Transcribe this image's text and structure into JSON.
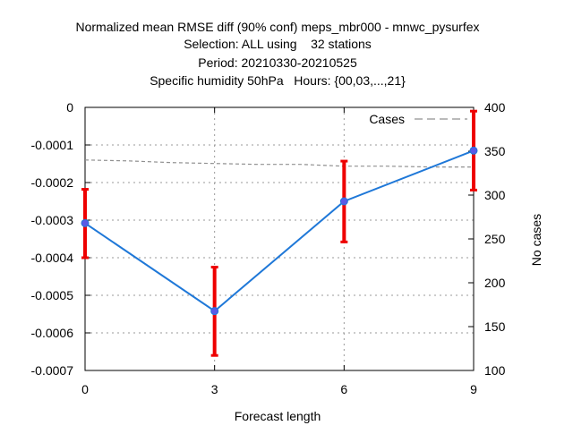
{
  "chart_data": {
    "type": "line",
    "title_lines": [
      "Normalized mean RMSE diff (90% conf) meps_mbr000 - mnwc_pysurfex",
      "Selection: ALL using    32 stations",
      "Period: 20210330-20210525",
      "Specific humidity 50hPa   Hours: {00,03,...,21}"
    ],
    "xlabel": "Forecast length",
    "ylabel": "",
    "y2label": "No cases",
    "x_ticks": [
      "0",
      "3",
      "6",
      "9"
    ],
    "y_ticks": [
      "0",
      "-0.0001",
      "-0.0002",
      "-0.0003",
      "-0.0004",
      "-0.0005",
      "-0.0006",
      "-0.0007"
    ],
    "y2_ticks": [
      "400",
      "350",
      "300",
      "250",
      "200",
      "150",
      "100"
    ],
    "xlim": [
      0,
      9
    ],
    "ylim": [
      -0.0007,
      0
    ],
    "y2lim": [
      100,
      400
    ],
    "grid": true,
    "legend_position": "top-right",
    "series": [
      {
        "name": "",
        "color": "#1f78d8",
        "marker_color": "#5a5ae6",
        "errorbar_color": "#ee0000",
        "points": [
          {
            "x": 0,
            "y": -0.000308,
            "lo": -0.0004,
            "hi": -0.000218
          },
          {
            "x": 3,
            "y": -0.000542,
            "lo": -0.00066,
            "hi": -0.000425
          },
          {
            "x": 6,
            "y": -0.00025,
            "lo": -0.000358,
            "hi": -0.000143
          },
          {
            "x": 9,
            "y": -0.000115,
            "lo": -0.00022,
            "hi": -1e-05
          }
        ]
      },
      {
        "name": "Cases",
        "axis": "y2",
        "color": "#909090",
        "dashed": true,
        "x": [
          0,
          1,
          2,
          3,
          4,
          5,
          6,
          7,
          8,
          9
        ],
        "y": [
          340,
          339,
          337,
          336,
          335,
          335,
          333,
          333,
          332,
          332
        ]
      }
    ]
  }
}
